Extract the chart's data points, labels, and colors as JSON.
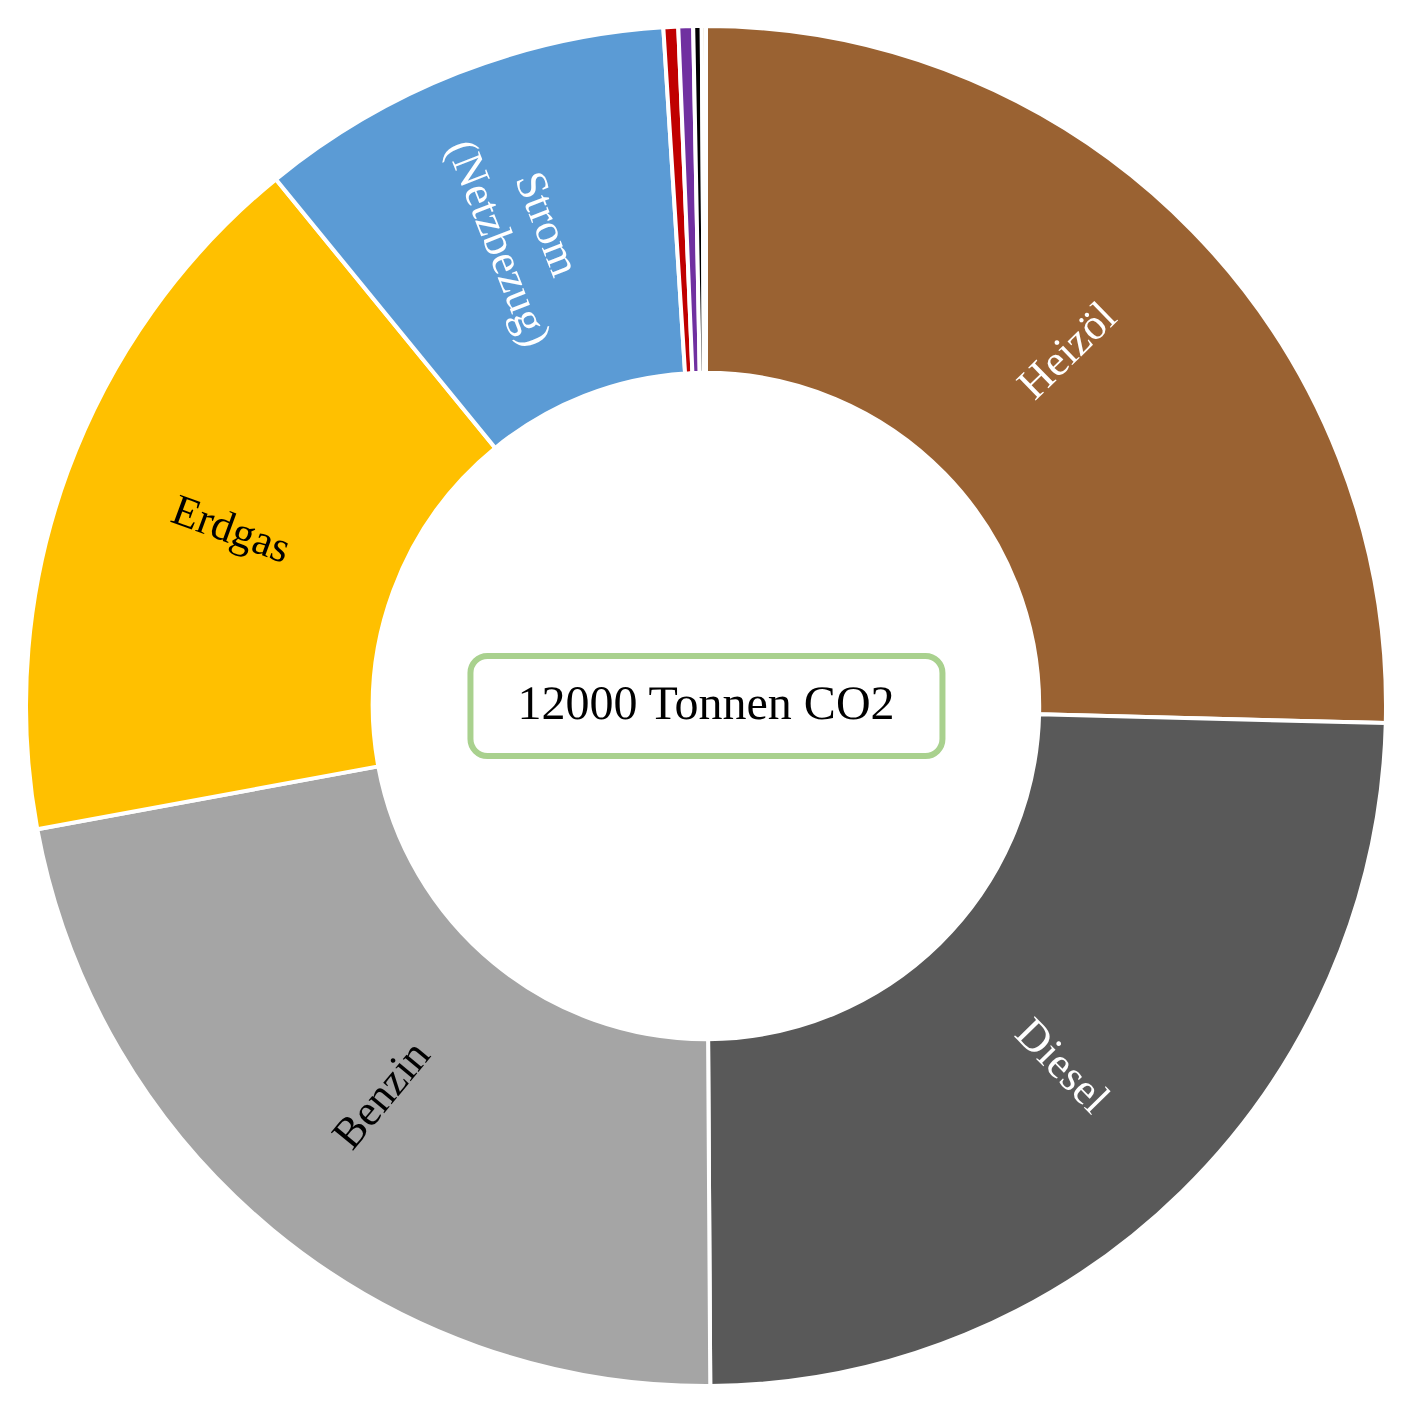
{
  "chart_data": {
    "type": "donut",
    "categories": [
      "Heizöl",
      "Diesel",
      "Benzin",
      "Erdgas",
      "Strom (Netzbezug)",
      null,
      null,
      null,
      null
    ],
    "values": [
      25.4,
      24.5,
      22.2,
      17,
      9.9,
      0.35,
      0.35,
      0.2,
      0.1
    ],
    "colors": [
      "#9a6232",
      "#595959",
      "#a5a5a5",
      "#ffc000",
      "#5b9bd5",
      "#c00000",
      "#7030a0",
      "#000000",
      "#d9c3a5"
    ],
    "annotations": [
      "12000 Tonnen CO2"
    ],
    "legend": false
  }
}
